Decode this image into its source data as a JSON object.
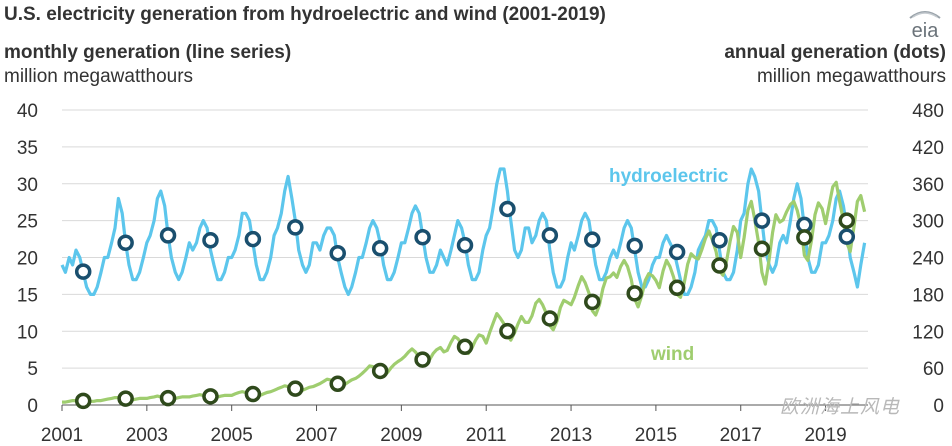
{
  "header": {
    "title": "U.S. electricity generation from hydroelectric and wind (2001-2019)",
    "left_axis_title": "monthly generation (line series)",
    "left_axis_unit": "million megawatthours",
    "right_axis_title": "annual generation (dots)",
    "right_axis_unit": "million megawatthours",
    "logo_text": "eia"
  },
  "watermark": "欧洲海上风电",
  "colors": {
    "hydro_line": "#5cc6ec",
    "hydro_dot_stroke": "#1a4f6e",
    "wind_line": "#9fcd6f",
    "wind_dot_stroke": "#2f4a1c",
    "grid": "#d9d9d9"
  },
  "chart_data": {
    "type": "line",
    "title": "U.S. electricity generation from hydroelectric and wind (2001-2019)",
    "xlim": [
      2001,
      2020
    ],
    "ylim": [
      0,
      40
    ],
    "y2lim": [
      0,
      480
    ],
    "y_ticks": [
      "0",
      "5",
      "10",
      "15",
      "20",
      "25",
      "30",
      "35",
      "40"
    ],
    "y2_ticks": [
      "0",
      "60",
      "120",
      "180",
      "240",
      "300",
      "360",
      "420",
      "480"
    ],
    "x_ticks": [
      "2001",
      "2003",
      "2005",
      "2007",
      "2009",
      "2011",
      "2013",
      "2015",
      "2017",
      "2019"
    ],
    "series": [
      {
        "name": "hydroelectric",
        "kind": "monthly",
        "x": [
          2001.0,
          2001.08,
          2001.17,
          2001.25,
          2001.33,
          2001.42,
          2001.5,
          2001.58,
          2001.67,
          2001.75,
          2001.83,
          2001.92,
          2002.0,
          2002.08,
          2002.17,
          2002.25,
          2002.33,
          2002.42,
          2002.5,
          2002.58,
          2002.67,
          2002.75,
          2002.83,
          2002.92,
          2003.0,
          2003.08,
          2003.17,
          2003.25,
          2003.33,
          2003.42,
          2003.5,
          2003.58,
          2003.67,
          2003.75,
          2003.83,
          2003.92,
          2004.0,
          2004.08,
          2004.17,
          2004.25,
          2004.33,
          2004.42,
          2004.5,
          2004.58,
          2004.67,
          2004.75,
          2004.83,
          2004.92,
          2005.0,
          2005.08,
          2005.17,
          2005.25,
          2005.33,
          2005.42,
          2005.5,
          2005.58,
          2005.67,
          2005.75,
          2005.83,
          2005.92,
          2006.0,
          2006.08,
          2006.17,
          2006.25,
          2006.33,
          2006.42,
          2006.5,
          2006.58,
          2006.67,
          2006.75,
          2006.83,
          2006.92,
          2007.0,
          2007.08,
          2007.17,
          2007.25,
          2007.33,
          2007.42,
          2007.5,
          2007.58,
          2007.67,
          2007.75,
          2007.83,
          2007.92,
          2008.0,
          2008.08,
          2008.17,
          2008.25,
          2008.33,
          2008.42,
          2008.5,
          2008.58,
          2008.67,
          2008.75,
          2008.83,
          2008.92,
          2009.0,
          2009.08,
          2009.17,
          2009.25,
          2009.33,
          2009.42,
          2009.5,
          2009.58,
          2009.67,
          2009.75,
          2009.83,
          2009.92,
          2010.0,
          2010.08,
          2010.17,
          2010.25,
          2010.33,
          2010.42,
          2010.5,
          2010.58,
          2010.67,
          2010.75,
          2010.83,
          2010.92,
          2011.0,
          2011.08,
          2011.17,
          2011.25,
          2011.33,
          2011.42,
          2011.5,
          2011.58,
          2011.67,
          2011.75,
          2011.83,
          2011.92,
          2012.0,
          2012.08,
          2012.17,
          2012.25,
          2012.33,
          2012.42,
          2012.5,
          2012.58,
          2012.67,
          2012.75,
          2012.83,
          2012.92,
          2013.0,
          2013.08,
          2013.17,
          2013.25,
          2013.33,
          2013.42,
          2013.5,
          2013.58,
          2013.67,
          2013.75,
          2013.83,
          2013.92,
          2014.0,
          2014.08,
          2014.17,
          2014.25,
          2014.33,
          2014.42,
          2014.5,
          2014.58,
          2014.67,
          2014.75,
          2014.83,
          2014.92,
          2015.0,
          2015.08,
          2015.17,
          2015.25,
          2015.33,
          2015.42,
          2015.5,
          2015.58,
          2015.67,
          2015.75,
          2015.83,
          2015.92,
          2016.0,
          2016.08,
          2016.17,
          2016.25,
          2016.33,
          2016.42,
          2016.5,
          2016.58,
          2016.67,
          2016.75,
          2016.83,
          2016.92,
          2017.0,
          2017.08,
          2017.17,
          2017.25,
          2017.33,
          2017.42,
          2017.5,
          2017.58,
          2017.67,
          2017.75,
          2017.83,
          2017.92,
          2018.0,
          2018.08,
          2018.17,
          2018.25,
          2018.33,
          2018.42,
          2018.5,
          2018.58,
          2018.67,
          2018.75,
          2018.83,
          2018.92,
          2019.0,
          2019.08,
          2019.17,
          2019.25,
          2019.33,
          2019.42,
          2019.5,
          2019.58,
          2019.67,
          2019.75,
          2019.83,
          2019.92
        ],
        "values": [
          19,
          18,
          20,
          19,
          21,
          20,
          18,
          16,
          15,
          15,
          16,
          18,
          20,
          20,
          22,
          24,
          28,
          26,
          22,
          19,
          17,
          17,
          18,
          20,
          22,
          23,
          25,
          28,
          29,
          27,
          23,
          20,
          18,
          17,
          18,
          20,
          22,
          21,
          22,
          24,
          25,
          24,
          21,
          19,
          17,
          17,
          18,
          20,
          20,
          21,
          23,
          26,
          26,
          25,
          22,
          19,
          17,
          17,
          18,
          20,
          23,
          24,
          26,
          29,
          31,
          28,
          25,
          21,
          19,
          18,
          19,
          22,
          22,
          21,
          23,
          24,
          24,
          23,
          20,
          18,
          16,
          15,
          16,
          18,
          20,
          20,
          22,
          24,
          25,
          24,
          22,
          19,
          17,
          17,
          18,
          20,
          22,
          22,
          24,
          26,
          27,
          26,
          23,
          20,
          18,
          18,
          19,
          21,
          20,
          19,
          21,
          23,
          25,
          24,
          22,
          19,
          17,
          17,
          18,
          21,
          23,
          24,
          27,
          30,
          32,
          32,
          29,
          25,
          21,
          20,
          21,
          24,
          24,
          22,
          23,
          25,
          26,
          25,
          21,
          18,
          16,
          16,
          17,
          20,
          22,
          21,
          23,
          25,
          26,
          25,
          22,
          19,
          17,
          17,
          18,
          20,
          21,
          20,
          22,
          24,
          25,
          24,
          21,
          18,
          16,
          16,
          17,
          19,
          20,
          20,
          22,
          23,
          22,
          21,
          19,
          17,
          15,
          15,
          16,
          18,
          21,
          22,
          23,
          25,
          25,
          24,
          21,
          18,
          17,
          17,
          18,
          21,
          25,
          26,
          30,
          32,
          31,
          29,
          25,
          21,
          19,
          18,
          19,
          22,
          23,
          22,
          25,
          28,
          30,
          28,
          24,
          20,
          18,
          18,
          19,
          22,
          22,
          23,
          25,
          28,
          29,
          27,
          24,
          20,
          18,
          16,
          19,
          22
        ]
      },
      {
        "name": "wind",
        "kind": "monthly",
        "x": [
          2001.0,
          2001.08,
          2001.17,
          2001.25,
          2001.33,
          2001.42,
          2001.5,
          2001.58,
          2001.67,
          2001.75,
          2001.83,
          2001.92,
          2002.0,
          2002.08,
          2002.17,
          2002.25,
          2002.33,
          2002.42,
          2002.5,
          2002.58,
          2002.67,
          2002.75,
          2002.83,
          2002.92,
          2003.0,
          2003.08,
          2003.17,
          2003.25,
          2003.33,
          2003.42,
          2003.5,
          2003.58,
          2003.67,
          2003.75,
          2003.83,
          2003.92,
          2004.0,
          2004.08,
          2004.17,
          2004.25,
          2004.33,
          2004.42,
          2004.5,
          2004.58,
          2004.67,
          2004.75,
          2004.83,
          2004.92,
          2005.0,
          2005.08,
          2005.17,
          2005.25,
          2005.33,
          2005.42,
          2005.5,
          2005.58,
          2005.67,
          2005.75,
          2005.83,
          2005.92,
          2006.0,
          2006.08,
          2006.17,
          2006.25,
          2006.33,
          2006.42,
          2006.5,
          2006.58,
          2006.67,
          2006.75,
          2006.83,
          2006.92,
          2007.0,
          2007.08,
          2007.17,
          2007.25,
          2007.33,
          2007.42,
          2007.5,
          2007.58,
          2007.67,
          2007.75,
          2007.83,
          2007.92,
          2008.0,
          2008.08,
          2008.17,
          2008.25,
          2008.33,
          2008.42,
          2008.5,
          2008.58,
          2008.67,
          2008.75,
          2008.83,
          2008.92,
          2009.0,
          2009.08,
          2009.17,
          2009.25,
          2009.33,
          2009.42,
          2009.5,
          2009.58,
          2009.67,
          2009.75,
          2009.83,
          2009.92,
          2010.0,
          2010.08,
          2010.17,
          2010.25,
          2010.33,
          2010.42,
          2010.5,
          2010.58,
          2010.67,
          2010.75,
          2010.83,
          2010.92,
          2011.0,
          2011.08,
          2011.17,
          2011.25,
          2011.33,
          2011.42,
          2011.5,
          2011.58,
          2011.67,
          2011.75,
          2011.83,
          2011.92,
          2012.0,
          2012.08,
          2012.17,
          2012.25,
          2012.33,
          2012.42,
          2012.5,
          2012.58,
          2012.67,
          2012.75,
          2012.83,
          2012.92,
          2013.0,
          2013.08,
          2013.17,
          2013.25,
          2013.33,
          2013.42,
          2013.5,
          2013.58,
          2013.67,
          2013.75,
          2013.83,
          2013.92,
          2014.0,
          2014.08,
          2014.17,
          2014.25,
          2014.33,
          2014.42,
          2014.5,
          2014.58,
          2014.67,
          2014.75,
          2014.83,
          2014.92,
          2015.0,
          2015.08,
          2015.17,
          2015.25,
          2015.33,
          2015.42,
          2015.5,
          2015.58,
          2015.67,
          2015.75,
          2015.83,
          2015.92,
          2016.0,
          2016.08,
          2016.17,
          2016.25,
          2016.33,
          2016.42,
          2016.5,
          2016.58,
          2016.67,
          2016.75,
          2016.83,
          2016.92,
          2017.0,
          2017.08,
          2017.17,
          2017.25,
          2017.33,
          2017.42,
          2017.5,
          2017.58,
          2017.67,
          2017.75,
          2017.83,
          2017.92,
          2018.0,
          2018.08,
          2018.17,
          2018.25,
          2018.33,
          2018.42,
          2018.5,
          2018.58,
          2018.67,
          2018.75,
          2018.83,
          2018.92,
          2019.0,
          2019.08,
          2019.17,
          2019.25,
          2019.33,
          2019.42,
          2019.5,
          2019.58,
          2019.67,
          2019.75,
          2019.83,
          2019.92
        ],
        "values": [
          0.4,
          0.4,
          0.5,
          0.6,
          0.6,
          0.6,
          0.5,
          0.5,
          0.5,
          0.5,
          0.6,
          0.6,
          0.7,
          0.8,
          0.9,
          1.0,
          1.0,
          1.0,
          0.8,
          0.7,
          0.7,
          0.8,
          0.9,
          0.9,
          0.9,
          1.0,
          1.1,
          1.2,
          1.1,
          1.0,
          0.9,
          0.8,
          0.9,
          1.0,
          1.1,
          1.1,
          1.1,
          1.2,
          1.3,
          1.4,
          1.3,
          1.2,
          1.0,
          1.0,
          1.1,
          1.2,
          1.3,
          1.3,
          1.3,
          1.5,
          1.7,
          1.8,
          1.7,
          1.5,
          1.3,
          1.2,
          1.3,
          1.5,
          1.7,
          1.8,
          2.0,
          2.2,
          2.4,
          2.6,
          2.5,
          2.3,
          2.0,
          1.8,
          2.0,
          2.2,
          2.4,
          2.5,
          2.7,
          2.9,
          3.2,
          3.5,
          3.4,
          3.1,
          2.7,
          2.5,
          2.8,
          3.1,
          3.4,
          3.6,
          3.9,
          4.3,
          4.8,
          5.3,
          5.2,
          4.7,
          4.2,
          3.9,
          4.4,
          5.0,
          5.5,
          5.9,
          6.2,
          6.6,
          7.2,
          7.6,
          7.2,
          6.5,
          5.8,
          5.5,
          6.2,
          7.0,
          7.5,
          7.8,
          7.2,
          7.4,
          8.5,
          9.3,
          9.0,
          8.3,
          7.5,
          7.0,
          7.8,
          8.8,
          9.5,
          9.3,
          8.4,
          9.8,
          11.2,
          12.4,
          11.8,
          11.0,
          9.5,
          8.8,
          9.8,
          11.0,
          12.0,
          11.2,
          11.2,
          12.1,
          13.8,
          14.3,
          13.6,
          12.4,
          10.8,
          10.2,
          11.4,
          13.2,
          14.2,
          13.9,
          13.6,
          14.6,
          16.2,
          17.4,
          16.6,
          15.2,
          12.8,
          12.2,
          13.6,
          15.8,
          17.2,
          17.4,
          17.9,
          17.3,
          18.8,
          19.6,
          18.8,
          17.0,
          14.4,
          13.3,
          14.9,
          16.9,
          17.8,
          17.5,
          16.9,
          15.9,
          18.2,
          19.6,
          18.8,
          17.3,
          15.0,
          14.6,
          16.6,
          19.1,
          20.5,
          20.0,
          19.8,
          21.0,
          22.6,
          23.6,
          22.4,
          20.8,
          18.2,
          17.6,
          19.6,
          22.2,
          24.2,
          23.4,
          20.0,
          22.7,
          26.4,
          27.6,
          25.2,
          22.0,
          18.0,
          16.4,
          19.8,
          23.4,
          25.8,
          24.8,
          25.1,
          26.2,
          27.2,
          27.6,
          26.4,
          24.2,
          20.3,
          19.6,
          22.4,
          25.8,
          27.4,
          26.6,
          24.6,
          27.0,
          29.6,
          30.2,
          27.6,
          25.0,
          22.0,
          20.8,
          24.2,
          27.6,
          28.4,
          26.2
        ]
      },
      {
        "name": "hydroelectric",
        "kind": "annual",
        "x": [
          2001.5,
          2002.5,
          2003.5,
          2004.5,
          2005.5,
          2006.5,
          2007.5,
          2008.5,
          2009.5,
          2010.5,
          2011.5,
          2012.5,
          2013.5,
          2014.5,
          2015.5,
          2016.5,
          2017.5,
          2018.5,
          2019.5
        ],
        "values": [
          217,
          264,
          276,
          268,
          270,
          289,
          247,
          255,
          273,
          260,
          319,
          276,
          269,
          259,
          249,
          268,
          300,
          293,
          274
        ]
      },
      {
        "name": "wind",
        "kind": "annual",
        "x": [
          2001.5,
          2002.5,
          2003.5,
          2004.5,
          2005.5,
          2006.5,
          2007.5,
          2008.5,
          2009.5,
          2010.5,
          2011.5,
          2012.5,
          2013.5,
          2014.5,
          2015.5,
          2016.5,
          2017.5,
          2018.5,
          2019.5
        ],
        "values": [
          6.7,
          10.4,
          11.2,
          14.1,
          17.8,
          26.6,
          34.5,
          55.4,
          73.9,
          94.7,
          120.2,
          140.8,
          167.8,
          181.7,
          190.7,
          227.0,
          254.3,
          272.7,
          300.1
        ]
      }
    ]
  }
}
